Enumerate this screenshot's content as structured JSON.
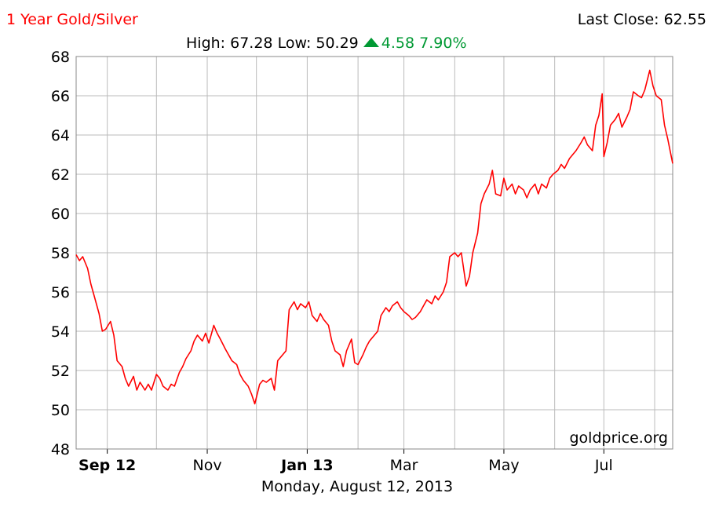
{
  "header": {
    "title": "1 Year Gold/Silver",
    "last_close_label": "Last Close: 62.55",
    "high_label": "High: 67.28",
    "low_label": "Low: 50.29",
    "change_value": "4.58",
    "change_percent": "7.90%"
  },
  "footer": {
    "date": "Monday, August 12, 2013",
    "watermark": "goldprice.org"
  },
  "colors": {
    "title": "#ff0000",
    "line": "#ff0000",
    "change": "#009933",
    "grid": "#bbbbbb",
    "axis": "#000000"
  },
  "chart_data": {
    "type": "line",
    "title": "1 Year Gold/Silver",
    "xlabel": "",
    "ylabel": "",
    "ylim": [
      48,
      68
    ],
    "yticks": [
      48,
      50,
      52,
      54,
      56,
      58,
      60,
      62,
      64,
      66,
      68
    ],
    "x_range": [
      "2012-08-13",
      "2013-08-12"
    ],
    "xticks": [
      {
        "label": "Sep 12",
        "date": "2012-09-01",
        "bold": true
      },
      {
        "label": "Nov",
        "date": "2012-11-01",
        "bold": false
      },
      {
        "label": "Jan 13",
        "date": "2013-01-01",
        "bold": true
      },
      {
        "label": "Mar",
        "date": "2013-03-01",
        "bold": false
      },
      {
        "label": "May",
        "date": "2013-05-01",
        "bold": false
      },
      {
        "label": "Jul",
        "date": "2013-07-01",
        "bold": false
      }
    ],
    "grid": true,
    "legend": "none",
    "series": [
      {
        "values": [
          [
            "2012-08-13",
            57.9
          ],
          [
            "2012-08-15",
            57.6
          ],
          [
            "2012-08-17",
            57.8
          ],
          [
            "2012-08-20",
            57.2
          ],
          [
            "2012-08-22",
            56.4
          ],
          [
            "2012-08-24",
            55.8
          ],
          [
            "2012-08-27",
            54.9
          ],
          [
            "2012-08-29",
            54.0
          ],
          [
            "2012-08-31",
            54.1
          ],
          [
            "2012-09-03",
            54.5
          ],
          [
            "2012-09-05",
            53.8
          ],
          [
            "2012-09-07",
            52.5
          ],
          [
            "2012-09-10",
            52.2
          ],
          [
            "2012-09-12",
            51.6
          ],
          [
            "2012-09-14",
            51.2
          ],
          [
            "2012-09-17",
            51.7
          ],
          [
            "2012-09-19",
            51.0
          ],
          [
            "2012-09-21",
            51.4
          ],
          [
            "2012-09-24",
            51.0
          ],
          [
            "2012-09-26",
            51.3
          ],
          [
            "2012-09-28",
            51.0
          ],
          [
            "2012-10-01",
            51.8
          ],
          [
            "2012-10-03",
            51.6
          ],
          [
            "2012-10-05",
            51.2
          ],
          [
            "2012-10-08",
            51.0
          ],
          [
            "2012-10-10",
            51.3
          ],
          [
            "2012-10-12",
            51.2
          ],
          [
            "2012-10-15",
            51.9
          ],
          [
            "2012-10-17",
            52.2
          ],
          [
            "2012-10-19",
            52.6
          ],
          [
            "2012-10-22",
            53.0
          ],
          [
            "2012-10-24",
            53.5
          ],
          [
            "2012-10-26",
            53.8
          ],
          [
            "2012-10-29",
            53.5
          ],
          [
            "2012-10-31",
            53.9
          ],
          [
            "2012-11-02",
            53.4
          ],
          [
            "2012-11-05",
            54.3
          ],
          [
            "2012-11-07",
            53.9
          ],
          [
            "2012-11-09",
            53.6
          ],
          [
            "2012-11-12",
            53.1
          ],
          [
            "2012-11-14",
            52.8
          ],
          [
            "2012-11-16",
            52.5
          ],
          [
            "2012-11-19",
            52.3
          ],
          [
            "2012-11-21",
            51.8
          ],
          [
            "2012-11-23",
            51.5
          ],
          [
            "2012-11-26",
            51.2
          ],
          [
            "2012-11-28",
            50.8
          ],
          [
            "2012-11-30",
            50.3
          ],
          [
            "2012-12-03",
            51.3
          ],
          [
            "2012-12-05",
            51.5
          ],
          [
            "2012-12-07",
            51.4
          ],
          [
            "2012-12-10",
            51.6
          ],
          [
            "2012-12-12",
            51.0
          ],
          [
            "2012-12-14",
            52.5
          ],
          [
            "2012-12-17",
            52.8
          ],
          [
            "2012-12-19",
            53.0
          ],
          [
            "2012-12-21",
            55.1
          ],
          [
            "2012-12-24",
            55.5
          ],
          [
            "2012-12-26",
            55.1
          ],
          [
            "2012-12-28",
            55.4
          ],
          [
            "2012-12-31",
            55.2
          ],
          [
            "2013-01-02",
            55.5
          ],
          [
            "2013-01-04",
            54.8
          ],
          [
            "2013-01-07",
            54.5
          ],
          [
            "2013-01-09",
            54.9
          ],
          [
            "2013-01-11",
            54.6
          ],
          [
            "2013-01-14",
            54.3
          ],
          [
            "2013-01-16",
            53.5
          ],
          [
            "2013-01-18",
            53.0
          ],
          [
            "2013-01-21",
            52.8
          ],
          [
            "2013-01-23",
            52.2
          ],
          [
            "2013-01-25",
            53.0
          ],
          [
            "2013-01-28",
            53.6
          ],
          [
            "2013-01-30",
            52.4
          ],
          [
            "2013-02-01",
            52.3
          ],
          [
            "2013-02-04",
            52.8
          ],
          [
            "2013-02-06",
            53.2
          ],
          [
            "2013-02-08",
            53.5
          ],
          [
            "2013-02-11",
            53.8
          ],
          [
            "2013-02-13",
            54.0
          ],
          [
            "2013-02-15",
            54.8
          ],
          [
            "2013-02-18",
            55.2
          ],
          [
            "2013-02-20",
            55.0
          ],
          [
            "2013-02-22",
            55.3
          ],
          [
            "2013-02-25",
            55.5
          ],
          [
            "2013-02-27",
            55.2
          ],
          [
            "2013-03-01",
            55.0
          ],
          [
            "2013-03-04",
            54.8
          ],
          [
            "2013-03-06",
            54.6
          ],
          [
            "2013-03-08",
            54.7
          ],
          [
            "2013-03-11",
            55.0
          ],
          [
            "2013-03-13",
            55.3
          ],
          [
            "2013-03-15",
            55.6
          ],
          [
            "2013-03-18",
            55.4
          ],
          [
            "2013-03-20",
            55.8
          ],
          [
            "2013-03-22",
            55.6
          ],
          [
            "2013-03-25",
            56.0
          ],
          [
            "2013-03-27",
            56.5
          ],
          [
            "2013-03-29",
            57.8
          ],
          [
            "2013-04-01",
            58.0
          ],
          [
            "2013-04-03",
            57.8
          ],
          [
            "2013-04-05",
            58.0
          ],
          [
            "2013-04-08",
            56.3
          ],
          [
            "2013-04-10",
            56.8
          ],
          [
            "2013-04-12",
            58.0
          ],
          [
            "2013-04-15",
            59.0
          ],
          [
            "2013-04-17",
            60.5
          ],
          [
            "2013-04-19",
            61.0
          ],
          [
            "2013-04-22",
            61.5
          ],
          [
            "2013-04-24",
            62.2
          ],
          [
            "2013-04-26",
            61.0
          ],
          [
            "2013-04-29",
            60.9
          ],
          [
            "2013-05-01",
            61.8
          ],
          [
            "2013-05-03",
            61.2
          ],
          [
            "2013-05-06",
            61.5
          ],
          [
            "2013-05-08",
            61.0
          ],
          [
            "2013-05-10",
            61.4
          ],
          [
            "2013-05-13",
            61.2
          ],
          [
            "2013-05-15",
            60.8
          ],
          [
            "2013-05-17",
            61.2
          ],
          [
            "2013-05-20",
            61.5
          ],
          [
            "2013-05-22",
            61.0
          ],
          [
            "2013-05-24",
            61.5
          ],
          [
            "2013-05-27",
            61.3
          ],
          [
            "2013-05-29",
            61.8
          ],
          [
            "2013-05-31",
            62.0
          ],
          [
            "2013-06-03",
            62.2
          ],
          [
            "2013-06-05",
            62.5
          ],
          [
            "2013-06-07",
            62.3
          ],
          [
            "2013-06-10",
            62.8
          ],
          [
            "2013-06-12",
            63.0
          ],
          [
            "2013-06-14",
            63.2
          ],
          [
            "2013-06-17",
            63.6
          ],
          [
            "2013-06-19",
            63.9
          ],
          [
            "2013-06-21",
            63.5
          ],
          [
            "2013-06-24",
            63.2
          ],
          [
            "2013-06-26",
            64.5
          ],
          [
            "2013-06-28",
            65.0
          ],
          [
            "2013-06-30",
            66.1
          ],
          [
            "2013-07-01",
            62.9
          ],
          [
            "2013-07-03",
            63.6
          ],
          [
            "2013-07-05",
            64.5
          ],
          [
            "2013-07-08",
            64.8
          ],
          [
            "2013-07-10",
            65.1
          ],
          [
            "2013-07-12",
            64.4
          ],
          [
            "2013-07-15",
            64.9
          ],
          [
            "2013-07-17",
            65.3
          ],
          [
            "2013-07-19",
            66.2
          ],
          [
            "2013-07-22",
            66.0
          ],
          [
            "2013-07-24",
            65.9
          ],
          [
            "2013-07-26",
            66.3
          ],
          [
            "2013-07-29",
            67.3
          ],
          [
            "2013-07-31",
            66.5
          ],
          [
            "2013-08-02",
            66.0
          ],
          [
            "2013-08-05",
            65.8
          ],
          [
            "2013-08-07",
            64.5
          ],
          [
            "2013-08-09",
            63.8
          ],
          [
            "2013-08-12",
            62.55
          ]
        ]
      }
    ]
  }
}
